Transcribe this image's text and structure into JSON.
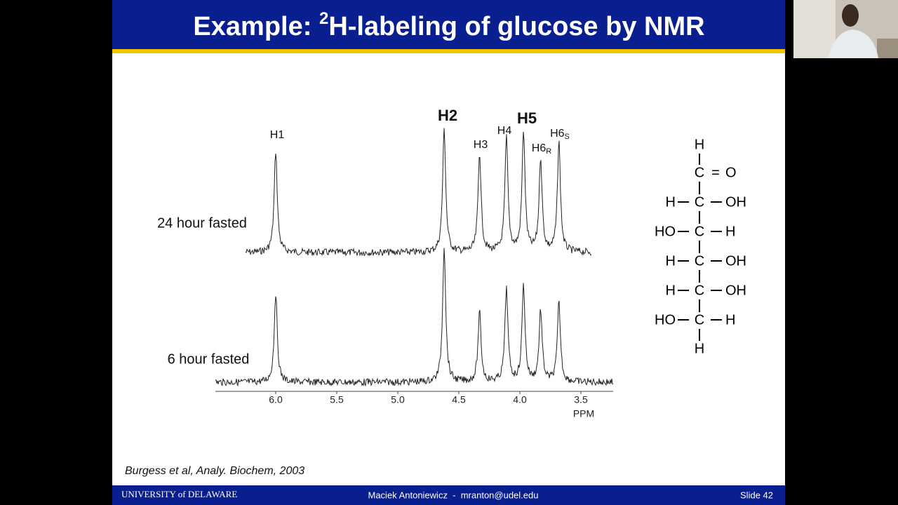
{
  "header": {
    "title_prefix": "Example: ",
    "title_sup": "2",
    "title_rest": "H-labeling of glucose by NMR"
  },
  "spectrum": {
    "peaks": [
      {
        "label": "H1"
      },
      {
        "label": "H2"
      },
      {
        "label": "H3"
      },
      {
        "label": "H4"
      },
      {
        "label": "H5"
      },
      {
        "label": "H6",
        "sub": "R"
      },
      {
        "label": "H6",
        "sub": "S"
      }
    ],
    "traces": [
      "24 hour fasted",
      "6 hour fasted"
    ],
    "xticks": [
      "6.0",
      "5.5",
      "5.0",
      "4.5",
      "4.0",
      "3.5"
    ],
    "xunit": "PPM"
  },
  "structure": {
    "rows": [
      {
        "center": "H"
      },
      {
        "center": "C",
        "bond": "=",
        "right": "O"
      },
      {
        "left": "H",
        "center": "C",
        "right": "OH"
      },
      {
        "left": "HO",
        "center": "C",
        "right": "H"
      },
      {
        "left": "H",
        "center": "C",
        "right": "OH"
      },
      {
        "left": "H",
        "center": "C",
        "right": "OH"
      },
      {
        "left": "HO",
        "center": "C",
        "right": "H"
      },
      {
        "center": "H"
      }
    ]
  },
  "citation": "Burgess et al, Analy. Biochem, 2003",
  "footer": {
    "logo": "UNIVERSITY of DELAWARE",
    "presenter": "Maciek Antoniewicz  -  mranton@udel.edu",
    "slide": "Slide 42"
  }
}
